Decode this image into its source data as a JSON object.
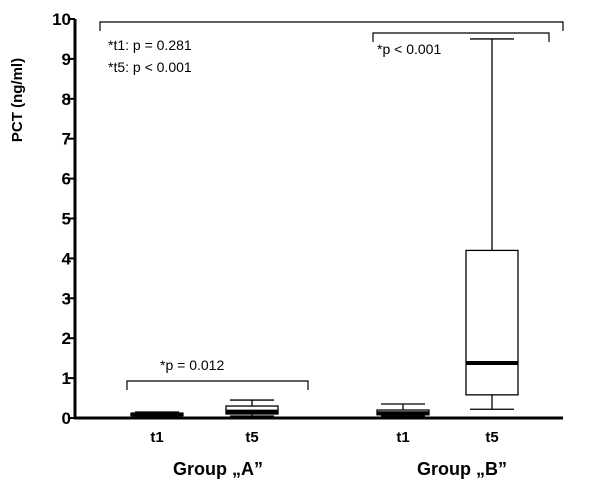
{
  "chart_data": {
    "type": "box",
    "ylabel": "PCT (ng/ml)",
    "ylim": [
      0,
      10
    ],
    "yticks": [
      "0",
      "1",
      "2",
      "3",
      "4",
      "5",
      "6",
      "7",
      "8",
      "9",
      "10"
    ],
    "grid": false,
    "groups": [
      {
        "label": "Group „A”",
        "boxes": [
          {
            "label": "t1",
            "min": 0.04,
            "q1": 0.06,
            "median": 0.09,
            "q3": 0.12,
            "max": 0.15
          },
          {
            "label": "t5",
            "min": 0.05,
            "q1": 0.1,
            "median": 0.16,
            "q3": 0.3,
            "max": 0.45
          }
        ]
      },
      {
        "label": "Group „B”",
        "boxes": [
          {
            "label": "t1",
            "min": 0.05,
            "q1": 0.08,
            "median": 0.12,
            "q3": 0.2,
            "max": 0.35
          },
          {
            "label": "t5",
            "min": 0.22,
            "q1": 0.58,
            "median": 1.38,
            "q3": 4.2,
            "max": 9.5
          }
        ]
      }
    ],
    "annotations": {
      "overall_line1": "*t1:  p = 0.281",
      "overall_line2": "*t5:  p < 0.001",
      "group_a": "*p = 0.012",
      "group_b": "*p < 0.001"
    }
  }
}
